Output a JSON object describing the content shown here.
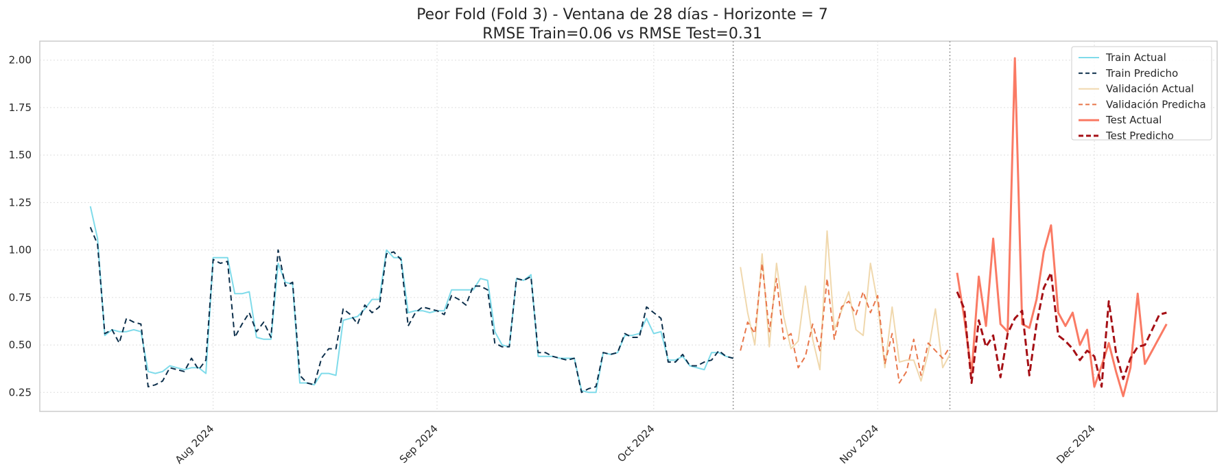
{
  "chart_data": {
    "type": "line",
    "title": "Peor Fold (Fold 3) - Ventana de 28 días - Horizonte = 7",
    "subtitle": "RMSE Train=0.06 vs RMSE Test=0.31",
    "xlabel": "",
    "ylabel": "",
    "xlim": [
      "2024-07-08",
      "2024-12-18"
    ],
    "ylim": [
      0.15,
      2.1
    ],
    "grid": true,
    "legend_position": "top-right",
    "x_ticks": [
      {
        "date": "2024-08-01",
        "label": "Aug 2024"
      },
      {
        "date": "2024-09-01",
        "label": "Sep 2024"
      },
      {
        "date": "2024-10-01",
        "label": "Oct 2024"
      },
      {
        "date": "2024-11-01",
        "label": "Nov 2024"
      },
      {
        "date": "2024-12-01",
        "label": "Dec 2024"
      }
    ],
    "y_ticks": [
      {
        "value": 0.25,
        "label": "0.25"
      },
      {
        "value": 0.5,
        "label": "0.50"
      },
      {
        "value": 0.75,
        "label": "0.75"
      },
      {
        "value": 1.0,
        "label": "1.00"
      },
      {
        "value": 1.25,
        "label": "1.25"
      },
      {
        "value": 1.5,
        "label": "1.50"
      },
      {
        "value": 1.75,
        "label": "1.75"
      },
      {
        "value": 2.0,
        "label": "2.00"
      }
    ],
    "vlines": [
      "2024-10-12",
      "2024-11-11"
    ],
    "series": [
      {
        "name": "Train Actual",
        "color": "#7fdbea",
        "dash": "solid",
        "width": 2,
        "x": [
          "2024-07-15",
          "2024-07-16",
          "2024-07-17",
          "2024-07-18",
          "2024-07-19",
          "2024-07-20",
          "2024-07-21",
          "2024-07-22",
          "2024-07-23",
          "2024-07-24",
          "2024-07-25",
          "2024-07-26",
          "2024-07-27",
          "2024-07-28",
          "2024-07-29",
          "2024-07-30",
          "2024-07-31",
          "2024-08-01",
          "2024-08-02",
          "2024-08-03",
          "2024-08-04",
          "2024-08-05",
          "2024-08-06",
          "2024-08-07",
          "2024-08-08",
          "2024-08-09",
          "2024-08-10",
          "2024-08-11",
          "2024-08-12",
          "2024-08-13",
          "2024-08-14",
          "2024-08-15",
          "2024-08-16",
          "2024-08-17",
          "2024-08-18",
          "2024-08-19",
          "2024-08-20",
          "2024-08-21",
          "2024-08-22",
          "2024-08-23",
          "2024-08-24",
          "2024-08-25",
          "2024-08-26",
          "2024-08-27",
          "2024-08-28",
          "2024-08-29",
          "2024-08-30",
          "2024-08-31",
          "2024-09-01",
          "2024-09-02",
          "2024-09-03",
          "2024-09-04",
          "2024-09-05",
          "2024-09-06",
          "2024-09-07",
          "2024-09-08",
          "2024-09-09",
          "2024-09-10",
          "2024-09-11",
          "2024-09-12",
          "2024-09-13",
          "2024-09-14",
          "2024-09-15",
          "2024-09-16",
          "2024-09-17",
          "2024-09-18",
          "2024-09-19",
          "2024-09-20",
          "2024-09-21",
          "2024-09-22",
          "2024-09-23",
          "2024-09-24",
          "2024-09-25",
          "2024-09-26",
          "2024-09-27",
          "2024-09-28",
          "2024-09-29",
          "2024-09-30",
          "2024-10-01",
          "2024-10-02",
          "2024-10-03",
          "2024-10-04",
          "2024-10-05",
          "2024-10-06",
          "2024-10-07",
          "2024-10-08",
          "2024-10-09",
          "2024-10-10",
          "2024-10-11",
          "2024-10-12"
        ],
        "values": [
          1.23,
          1.06,
          0.55,
          0.58,
          0.57,
          0.57,
          0.58,
          0.57,
          0.36,
          0.35,
          0.36,
          0.39,
          0.38,
          0.37,
          0.38,
          0.38,
          0.35,
          0.96,
          0.96,
          0.96,
          0.77,
          0.77,
          0.78,
          0.54,
          0.53,
          0.53,
          0.93,
          0.83,
          0.82,
          0.3,
          0.3,
          0.29,
          0.35,
          0.35,
          0.34,
          0.63,
          0.64,
          0.65,
          0.69,
          0.74,
          0.74,
          1.0,
          0.96,
          0.96,
          0.67,
          0.68,
          0.68,
          0.67,
          0.68,
          0.68,
          0.79,
          0.79,
          0.79,
          0.79,
          0.85,
          0.84,
          0.57,
          0.5,
          0.49,
          0.85,
          0.84,
          0.87,
          0.44,
          0.44,
          0.44,
          0.43,
          0.43,
          0.43,
          0.26,
          0.25,
          0.25,
          0.46,
          0.45,
          0.46,
          0.55,
          0.55,
          0.56,
          0.64,
          0.56,
          0.57,
          0.42,
          0.42,
          0.44,
          0.39,
          0.38,
          0.37,
          0.46,
          0.46,
          0.44,
          0.43
        ]
      },
      {
        "name": "Train Predicho",
        "color": "#0b2e4a",
        "dash": "8,5",
        "width": 2,
        "x": [
          "2024-07-15",
          "2024-07-16",
          "2024-07-17",
          "2024-07-18",
          "2024-07-19",
          "2024-07-20",
          "2024-07-21",
          "2024-07-22",
          "2024-07-23",
          "2024-07-24",
          "2024-07-25",
          "2024-07-26",
          "2024-07-27",
          "2024-07-28",
          "2024-07-29",
          "2024-07-30",
          "2024-07-31",
          "2024-08-01",
          "2024-08-02",
          "2024-08-03",
          "2024-08-04",
          "2024-08-05",
          "2024-08-06",
          "2024-08-07",
          "2024-08-08",
          "2024-08-09",
          "2024-08-10",
          "2024-08-11",
          "2024-08-12",
          "2024-08-13",
          "2024-08-14",
          "2024-08-15",
          "2024-08-16",
          "2024-08-17",
          "2024-08-18",
          "2024-08-19",
          "2024-08-20",
          "2024-08-21",
          "2024-08-22",
          "2024-08-23",
          "2024-08-24",
          "2024-08-25",
          "2024-08-26",
          "2024-08-27",
          "2024-08-28",
          "2024-08-29",
          "2024-08-30",
          "2024-08-31",
          "2024-09-01",
          "2024-09-02",
          "2024-09-03",
          "2024-09-04",
          "2024-09-05",
          "2024-09-06",
          "2024-09-07",
          "2024-09-08",
          "2024-09-09",
          "2024-09-10",
          "2024-09-11",
          "2024-09-12",
          "2024-09-13",
          "2024-09-14",
          "2024-09-15",
          "2024-09-16",
          "2024-09-17",
          "2024-09-18",
          "2024-09-19",
          "2024-09-20",
          "2024-09-21",
          "2024-09-22",
          "2024-09-23",
          "2024-09-24",
          "2024-09-25",
          "2024-09-26",
          "2024-09-27",
          "2024-09-28",
          "2024-09-29",
          "2024-09-30",
          "2024-10-01",
          "2024-10-02",
          "2024-10-03",
          "2024-10-04",
          "2024-10-05",
          "2024-10-06",
          "2024-10-07",
          "2024-10-08",
          "2024-10-09",
          "2024-10-10",
          "2024-10-11",
          "2024-10-12"
        ],
        "values": [
          1.12,
          1.03,
          0.56,
          0.58,
          0.51,
          0.64,
          0.62,
          0.61,
          0.28,
          0.29,
          0.31,
          0.38,
          0.37,
          0.36,
          0.43,
          0.37,
          0.42,
          0.95,
          0.93,
          0.94,
          0.54,
          0.61,
          0.67,
          0.57,
          0.62,
          0.54,
          1.0,
          0.81,
          0.83,
          0.34,
          0.3,
          0.29,
          0.43,
          0.48,
          0.48,
          0.69,
          0.66,
          0.61,
          0.71,
          0.67,
          0.7,
          0.98,
          0.99,
          0.95,
          0.6,
          0.67,
          0.7,
          0.69,
          0.68,
          0.66,
          0.76,
          0.74,
          0.71,
          0.81,
          0.81,
          0.79,
          0.51,
          0.49,
          0.49,
          0.85,
          0.84,
          0.86,
          0.46,
          0.46,
          0.44,
          0.43,
          0.42,
          0.43,
          0.25,
          0.27,
          0.28,
          0.46,
          0.45,
          0.46,
          0.56,
          0.54,
          0.54,
          0.7,
          0.67,
          0.64,
          0.41,
          0.41,
          0.45,
          0.39,
          0.39,
          0.41,
          0.42,
          0.47,
          0.44,
          0.43
        ]
      },
      {
        "name": "Validación Actual",
        "color": "#f0d8ad",
        "dash": "solid",
        "width": 2,
        "x": [
          "2024-10-13",
          "2024-10-14",
          "2024-10-15",
          "2024-10-16",
          "2024-10-17",
          "2024-10-18",
          "2024-10-19",
          "2024-10-20",
          "2024-10-21",
          "2024-10-22",
          "2024-10-23",
          "2024-10-24",
          "2024-10-25",
          "2024-10-26",
          "2024-10-27",
          "2024-10-28",
          "2024-10-29",
          "2024-10-30",
          "2024-10-31",
          "2024-11-01",
          "2024-11-02",
          "2024-11-03",
          "2024-11-04",
          "2024-11-05",
          "2024-11-06",
          "2024-11-07",
          "2024-11-08",
          "2024-11-09",
          "2024-11-10",
          "2024-11-11"
        ],
        "values": [
          0.91,
          0.67,
          0.5,
          0.98,
          0.49,
          0.93,
          0.65,
          0.48,
          0.52,
          0.81,
          0.53,
          0.37,
          1.1,
          0.58,
          0.68,
          0.78,
          0.58,
          0.55,
          0.93,
          0.72,
          0.38,
          0.7,
          0.41,
          0.42,
          0.42,
          0.31,
          0.46,
          0.69,
          0.38,
          0.45
        ]
      },
      {
        "name": "Validación Predicha",
        "color": "#e8764a",
        "dash": "8,5",
        "width": 2,
        "x": [
          "2024-10-13",
          "2024-10-14",
          "2024-10-15",
          "2024-10-16",
          "2024-10-17",
          "2024-10-18",
          "2024-10-19",
          "2024-10-20",
          "2024-10-21",
          "2024-10-22",
          "2024-10-23",
          "2024-10-24",
          "2024-10-25",
          "2024-10-26",
          "2024-10-27",
          "2024-10-28",
          "2024-10-29",
          "2024-10-30",
          "2024-10-31",
          "2024-11-01",
          "2024-11-02",
          "2024-11-03",
          "2024-11-04",
          "2024-11-05",
          "2024-11-06",
          "2024-11-07",
          "2024-11-08",
          "2024-11-09",
          "2024-11-10",
          "2024-11-11"
        ],
        "values": [
          0.47,
          0.62,
          0.56,
          0.93,
          0.57,
          0.85,
          0.53,
          0.56,
          0.38,
          0.44,
          0.61,
          0.47,
          0.85,
          0.53,
          0.7,
          0.73,
          0.66,
          0.78,
          0.67,
          0.76,
          0.4,
          0.56,
          0.3,
          0.36,
          0.53,
          0.34,
          0.51,
          0.47,
          0.43,
          0.49
        ]
      },
      {
        "name": "Test Actual",
        "color": "#fa7a64",
        "dash": "solid",
        "width": 3,
        "x": [
          "2024-11-12",
          "2024-11-13",
          "2024-11-14",
          "2024-11-15",
          "2024-11-16",
          "2024-11-17",
          "2024-11-18",
          "2024-11-19",
          "2024-11-20",
          "2024-11-21",
          "2024-11-22",
          "2024-11-23",
          "2024-11-24",
          "2024-11-25",
          "2024-11-26",
          "2024-11-27",
          "2024-11-28",
          "2024-11-29",
          "2024-11-30",
          "2024-12-01",
          "2024-12-02",
          "2024-12-03",
          "2024-12-04",
          "2024-12-05",
          "2024-12-06",
          "2024-12-07",
          "2024-12-08",
          "2024-12-09",
          "2024-12-10",
          "2024-12-11"
        ],
        "values": [
          0.88,
          0.64,
          0.35,
          0.86,
          0.6,
          1.06,
          0.61,
          0.57,
          2.01,
          0.61,
          0.59,
          0.74,
          0.99,
          1.13,
          0.67,
          0.6,
          0.67,
          0.5,
          0.58,
          0.28,
          0.39,
          0.51,
          0.36,
          0.23,
          0.38,
          0.77,
          0.4,
          0.47,
          0.54,
          0.61
        ]
      },
      {
        "name": "Test Predicho",
        "color": "#a50f15",
        "dash": "10,5",
        "width": 3,
        "x": [
          "2024-11-12",
          "2024-11-13",
          "2024-11-14",
          "2024-11-15",
          "2024-11-16",
          "2024-11-17",
          "2024-11-18",
          "2024-11-19",
          "2024-11-20",
          "2024-11-21",
          "2024-11-22",
          "2024-11-23",
          "2024-11-24",
          "2024-11-25",
          "2024-11-26",
          "2024-11-27",
          "2024-11-28",
          "2024-11-29",
          "2024-11-30",
          "2024-12-01",
          "2024-12-02",
          "2024-12-03",
          "2024-12-04",
          "2024-12-05",
          "2024-12-06",
          "2024-12-07",
          "2024-12-08",
          "2024-12-09",
          "2024-12-10",
          "2024-12-11"
        ],
        "values": [
          0.78,
          0.69,
          0.3,
          0.63,
          0.49,
          0.55,
          0.33,
          0.56,
          0.64,
          0.68,
          0.34,
          0.61,
          0.8,
          0.88,
          0.55,
          0.52,
          0.48,
          0.42,
          0.47,
          0.44,
          0.28,
          0.73,
          0.46,
          0.32,
          0.43,
          0.49,
          0.5,
          0.58,
          0.66,
          0.67
        ]
      }
    ]
  }
}
